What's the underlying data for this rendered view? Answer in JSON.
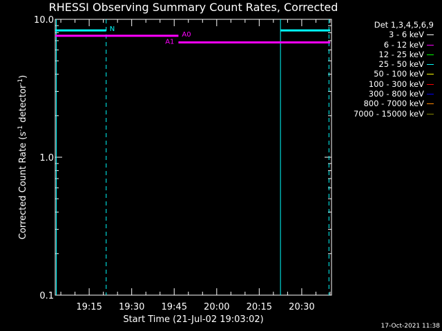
{
  "title": "RHESSI Observing Summary Count Rates, Corrected",
  "footer_date": "17-Oct-2021 11:38",
  "chart_data": {
    "type": "line",
    "title": "RHESSI Observing Summary Count Rates, Corrected",
    "xlabel": "Start Time (21-Jul-02 19:03:02)",
    "ylabel": "Corrected Count Rate (s",
    "ylabel_sup1": "-1",
    "ylabel_mid": " detector",
    "ylabel_sup2": "-1",
    "ylabel_end": ")",
    "y_scale": "log",
    "ylim": [
      0.1,
      10.0
    ],
    "y_ticks": [
      {
        "value": 0.1,
        "label": "0.1"
      },
      {
        "value": 1.0,
        "label": "1.0"
      },
      {
        "value": 10.0,
        "label": "10.0"
      }
    ],
    "xlim_minutes": [
      1143.03,
      1240.5
    ],
    "x_ticks": [
      {
        "minutes": 1155,
        "label": "19:15"
      },
      {
        "minutes": 1170,
        "label": "19:30"
      },
      {
        "minutes": 1185,
        "label": "19:45"
      },
      {
        "minutes": 1200,
        "label": "20:00"
      },
      {
        "minutes": 1215,
        "label": "20:15"
      },
      {
        "minutes": 1230,
        "label": "20:30"
      }
    ],
    "legend_header": "Det 1,3,4,5,6,9",
    "legend_placement": "right-outside",
    "legend": [
      {
        "label": "3 - 6 keV",
        "color": "#ffffff"
      },
      {
        "label": "6 - 12 keV",
        "color": "#ff00ff"
      },
      {
        "label": "12 - 25 keV",
        "color": "#00ff00"
      },
      {
        "label": "25 - 50 keV",
        "color": "#00ffff"
      },
      {
        "label": "50 - 100 keV",
        "color": "#ffff00"
      },
      {
        "label": "100 - 300 keV",
        "color": "#ff0000"
      },
      {
        "label": "300 - 800 keV",
        "color": "#0000ff"
      },
      {
        "label": "800 - 7000 keV",
        "color": "#ff8800"
      },
      {
        "label": "7000 - 15000 keV",
        "color": "#888800"
      }
    ],
    "state_bars": [
      {
        "label": "N",
        "color": "#00ffff",
        "start": 1143.03,
        "end": 1161.0,
        "value": 8.3
      },
      {
        "label": "A0",
        "color": "#ff00ff",
        "start": 1143.03,
        "end": 1186.5,
        "value": 7.6
      },
      {
        "label": "A1",
        "color": "#ff00ff",
        "start": 1186.5,
        "end": 1240.0,
        "value": 6.8
      },
      {
        "label": "",
        "color": "#00ffff",
        "start": 1222.5,
        "end": 1240.0,
        "value": 8.3
      }
    ],
    "solid_vlines": [
      {
        "minutes": 1143.4,
        "color": "#00ffff"
      },
      {
        "minutes": 1222.5,
        "color": "#00ffff"
      }
    ],
    "dashed_vlines": [
      {
        "minutes": 1161.0,
        "color": "#00ffff"
      },
      {
        "minutes": 1239.6,
        "color": "#00ffff"
      }
    ],
    "grid": false
  }
}
